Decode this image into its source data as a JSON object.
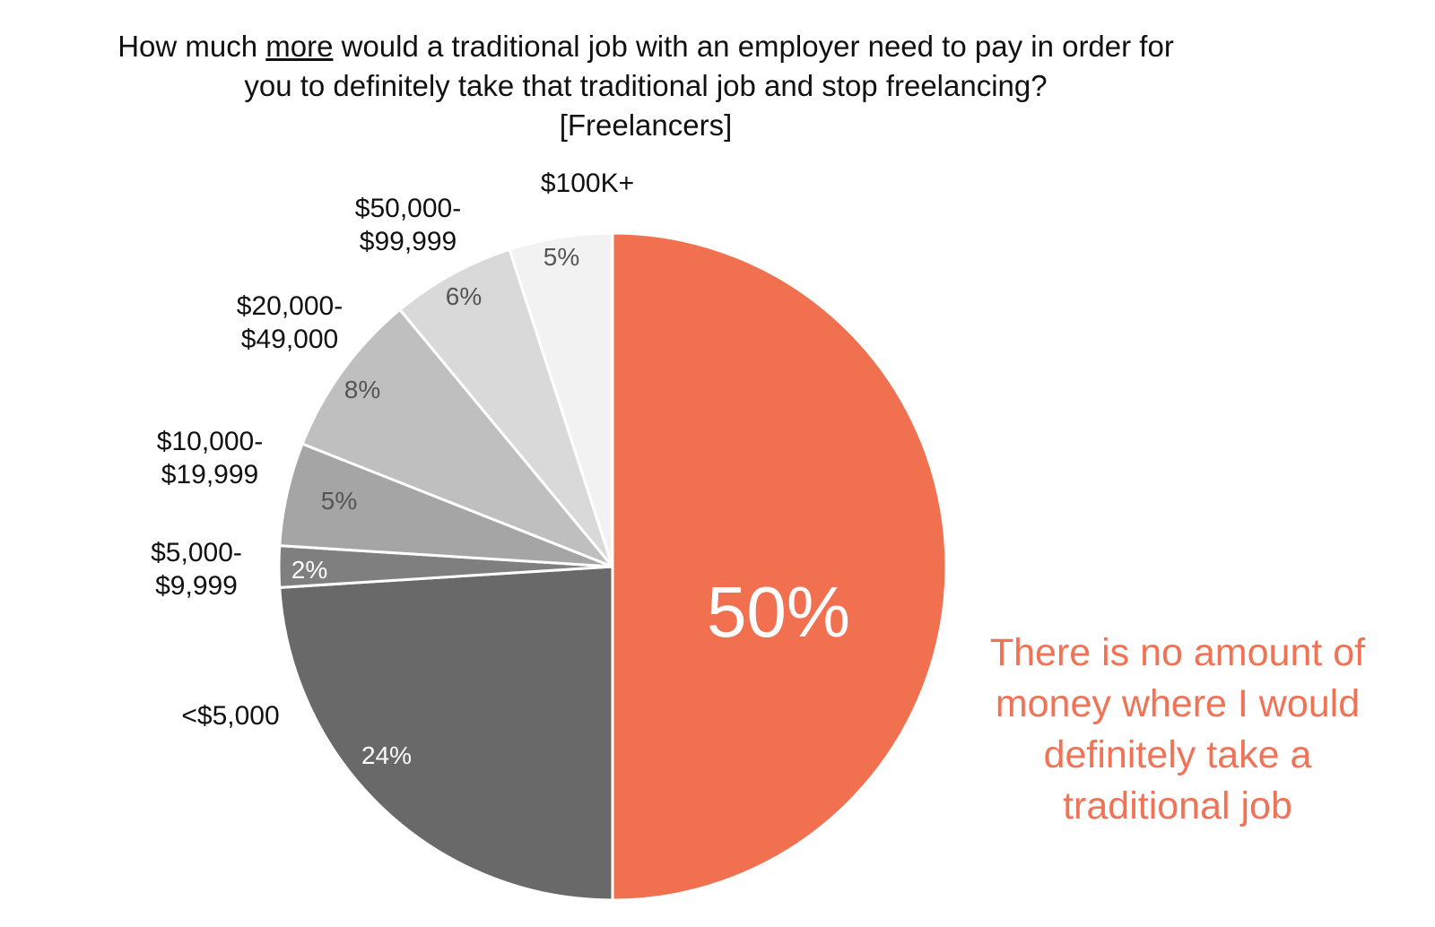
{
  "title": {
    "line1_pre": "How much ",
    "line1_emph": "more",
    "line1_post": " would a traditional job with an employer need to pay in order for",
    "line2": "you to definitely take that traditional job and stop freelancing?",
    "line3": "[Freelancers]"
  },
  "chart_data": {
    "type": "pie",
    "start": "12 o'clock",
    "direction": "clockwise",
    "slices": [
      {
        "label": "There is no amount of money where I would definitely take a traditional job",
        "label_lines": [
          "There is no amount of",
          "money where I would",
          "definitely take a",
          "traditional job"
        ],
        "value": 50,
        "value_label": "50%",
        "color": "#f07050",
        "value_color": "#ffffff"
      },
      {
        "label": "<$5,000",
        "label_lines": [
          "<$5,000"
        ],
        "value": 24,
        "value_label": "24%",
        "color": "#696969",
        "value_color": "#ffffff"
      },
      {
        "label": "$5,000-$9,999",
        "label_lines": [
          "$5,000-",
          "$9,999"
        ],
        "value": 2,
        "value_label": "2%",
        "color": "#7f7f7f",
        "value_color": "#ffffff"
      },
      {
        "label": "$10,000-$19,999",
        "label_lines": [
          "$10,000-",
          "$19,999"
        ],
        "value": 5,
        "value_label": "5%",
        "color": "#a5a5a5",
        "value_color": "#555555"
      },
      {
        "label": "$20,000-$49,000",
        "label_lines": [
          "$20,000-",
          "$49,000"
        ],
        "value": 8,
        "value_label": "8%",
        "color": "#bfbfbf",
        "value_color": "#555555"
      },
      {
        "label": "$50,000-$99,999",
        "label_lines": [
          "$50,000-",
          "$99,999"
        ],
        "value": 6,
        "value_label": "6%",
        "color": "#d9d9d9",
        "value_color": "#555555"
      },
      {
        "label": "$100K+",
        "label_lines": [
          "$100K+"
        ],
        "value": 5,
        "value_label": "5%",
        "color": "#f2f2f2",
        "value_color": "#555555"
      }
    ]
  }
}
